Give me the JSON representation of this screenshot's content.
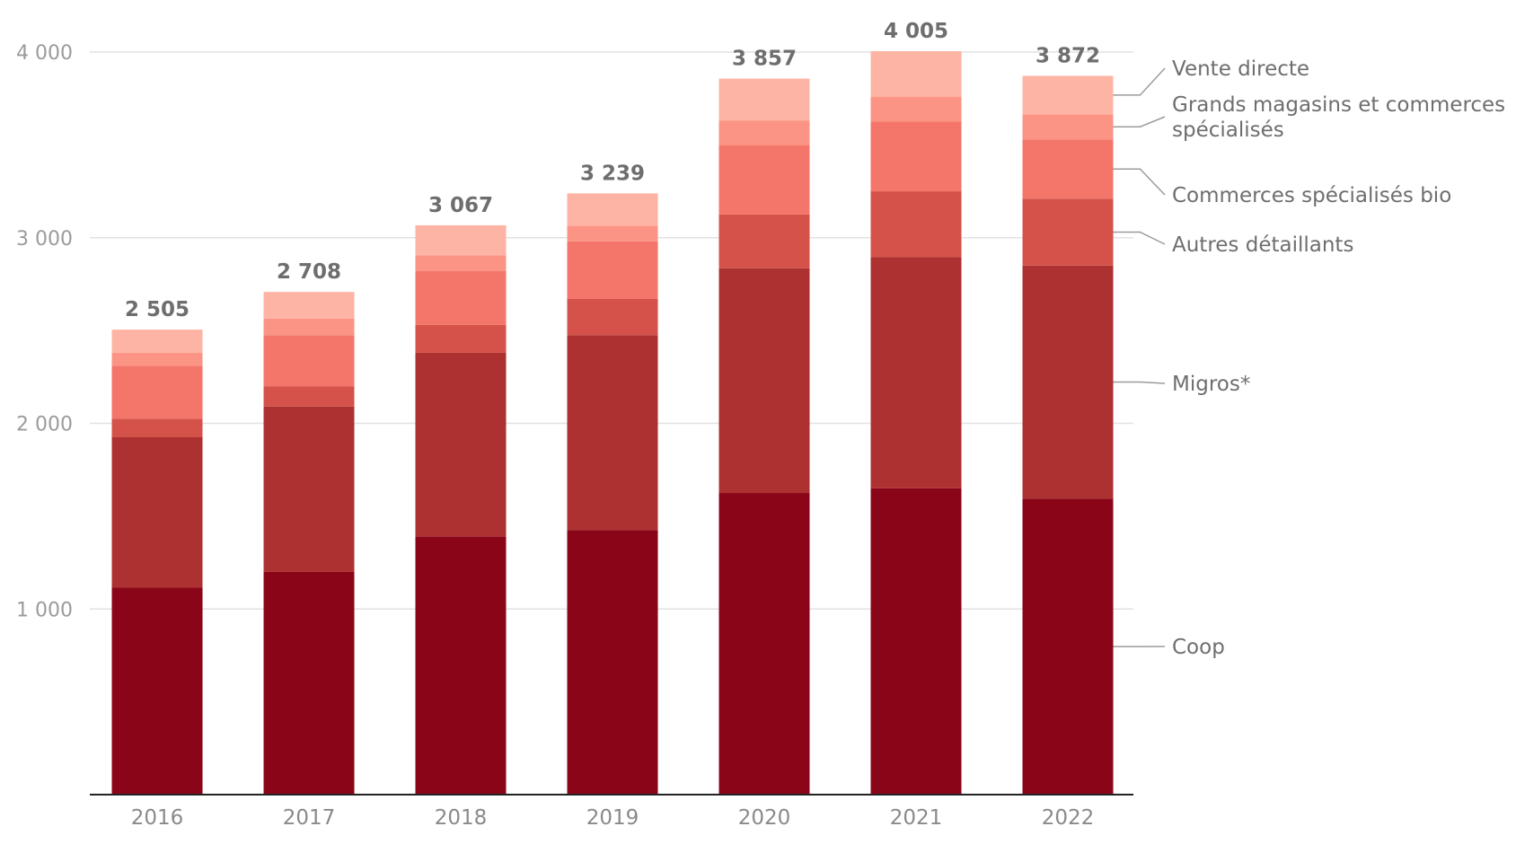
{
  "chart_data": {
    "type": "bar",
    "stacked": true,
    "categories": [
      "2016",
      "2017",
      "2018",
      "2019",
      "2020",
      "2021",
      "2022"
    ],
    "series": [
      {
        "name": "Coop",
        "color": "#8b0519",
        "values": [
          1115,
          1200,
          1390,
          1425,
          1625,
          1650,
          1595
        ]
      },
      {
        "name": "Migros*",
        "color": "#ad3131",
        "values": [
          810,
          890,
          990,
          1050,
          1210,
          1245,
          1255
        ]
      },
      {
        "name": "Autres détaillants",
        "color": "#d45249",
        "values": [
          100,
          110,
          150,
          195,
          290,
          355,
          360
        ]
      },
      {
        "name": "Commerces spécialisés bio",
        "color": "#f4766a",
        "values": [
          285,
          275,
          290,
          310,
          375,
          375,
          320
        ]
      },
      {
        "name": "Grands magasins et commerces spécialisés",
        "color": "#fb9484",
        "values": [
          70,
          90,
          85,
          85,
          130,
          135,
          135
        ]
      },
      {
        "name": "Vente directe",
        "color": "#feb4a4",
        "values": [
          125,
          143,
          162,
          174,
          227,
          245,
          207
        ]
      }
    ],
    "totals": [
      2505,
      2708,
      3067,
      3239,
      3857,
      4005,
      3872
    ],
    "total_labels": [
      "2 505",
      "2 708",
      "3 067",
      "3 239",
      "3 857",
      "4 005",
      "3 872"
    ],
    "yticks": [
      1000,
      2000,
      3000,
      4000
    ],
    "ytick_labels": [
      "1 000",
      "2 000",
      "3 000",
      "4 000"
    ],
    "ylim": [
      0,
      4000
    ],
    "legend_position": "right",
    "grid": true
  }
}
